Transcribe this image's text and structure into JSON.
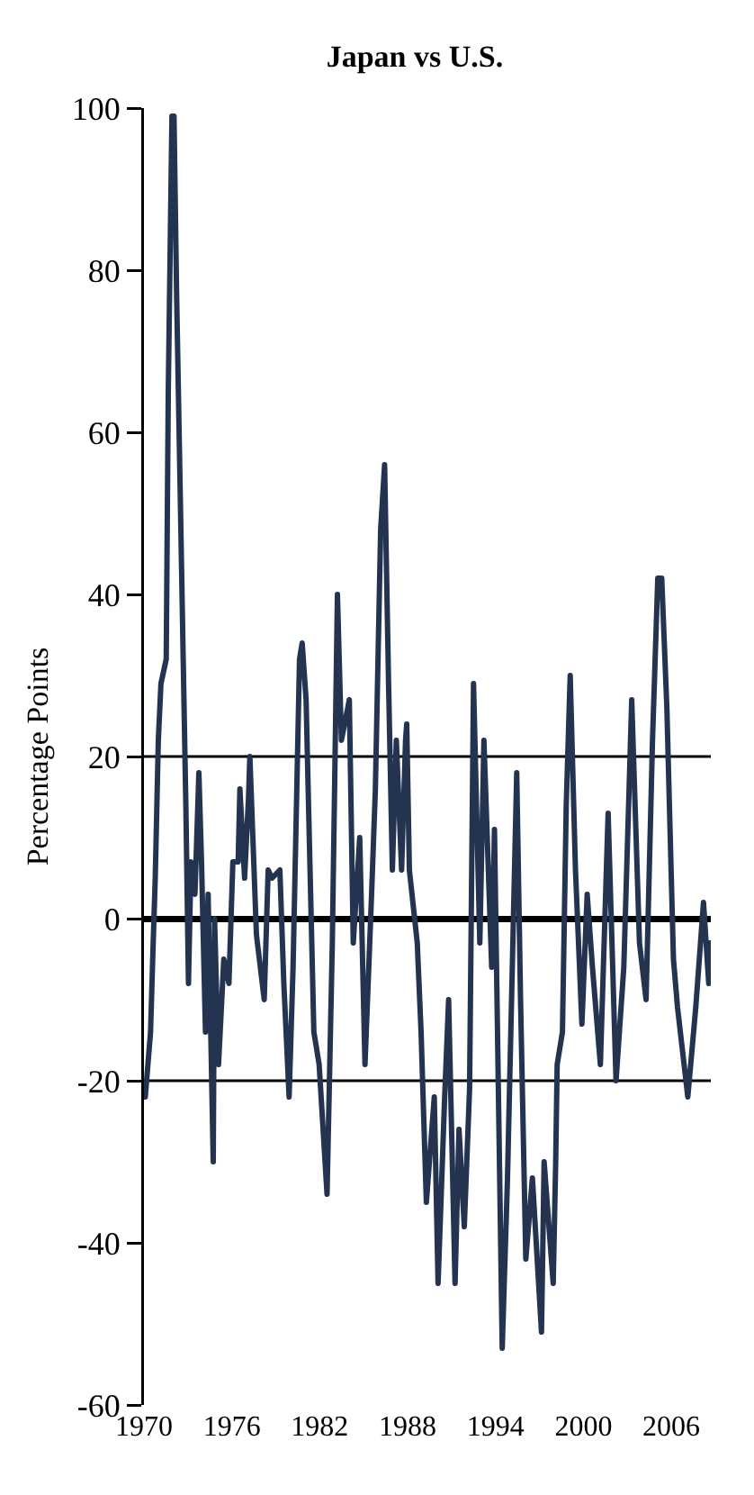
{
  "chart_data": {
    "type": "line",
    "title": "Japan vs U.S.",
    "ylabel": "Percentage Points",
    "xlim": [
      1970,
      2008.7
    ],
    "xticks": [
      1970,
      1976,
      1982,
      1988,
      1994,
      2000,
      2006
    ],
    "ylim": [
      -60,
      100
    ],
    "yticks": [
      -60,
      -40,
      -20,
      0,
      20,
      40,
      60,
      80,
      100
    ],
    "grid": false,
    "marker": "none",
    "line_style": "solid",
    "ref_lines": [
      {
        "axis": "y",
        "value": 20,
        "color": "#000000"
      },
      {
        "axis": "y",
        "value": -20,
        "color": "#000000"
      }
    ],
    "series": [
      {
        "color": "#233350",
        "x": [
          1970.09,
          1970.45,
          1970.63,
          1970.77,
          1970.98,
          1971.16,
          1971.52,
          1971.66,
          1971.91,
          1972.05,
          1972.23,
          1972.5,
          1972.68,
          1972.86,
          1973.04,
          1973.21,
          1973.48,
          1973.75,
          1973.93,
          1974.2,
          1974.38,
          1974.73,
          1974.82,
          1975.09,
          1975.45,
          1975.8,
          1976.07,
          1976.43,
          1976.55,
          1976.87,
          1977.14,
          1977.23,
          1977.68,
          1978.21,
          1978.48,
          1978.75,
          1979.28,
          1979.55,
          1979.91,
          1980.18,
          1980.62,
          1980.8,
          1981.07,
          1981.34,
          1981.6,
          1981.96,
          1982.5,
          1982.86,
          1983.21,
          1983.48,
          1984.02,
          1984.29,
          1984.73,
          1985.09,
          1985.54,
          1985.8,
          1986.16,
          1986.43,
          1986.7,
          1986.96,
          1987.23,
          1987.59,
          1987.86,
          1987.94,
          1988.12,
          1988.66,
          1988.92,
          1989.28,
          1989.82,
          1990.08,
          1990.53,
          1990.8,
          1991.24,
          1991.51,
          1991.87,
          1992.23,
          1992.5,
          1992.93,
          1993.21,
          1993.74,
          1993.93,
          1994.46,
          1994.82,
          1995.45,
          1995.71,
          1996.07,
          1996.52,
          1997.14,
          1997.32,
          1997.94,
          1998.11,
          1998.21,
          1998.57,
          1998.83,
          1999.1,
          1999.46,
          1999.9,
          2000.26,
          2000.62,
          2001.16,
          2001.69,
          2002.23,
          2002.76,
          2003.3,
          2003.83,
          2004.28,
          2004.72,
          2005.08,
          2005.35,
          2005.7,
          2006.15,
          2006.43,
          2007.13,
          2007.67,
          2008.2,
          2008.56,
          2008.65
        ],
        "values": [
          -22,
          -14,
          -3,
          5,
          22,
          29,
          32,
          65,
          99,
          99,
          77,
          50,
          32,
          14,
          -8,
          7,
          3,
          18,
          7,
          -14,
          3,
          -30,
          0,
          -18,
          -5,
          -8,
          7,
          7,
          16,
          5,
          15,
          20,
          -2,
          -10,
          6,
          5,
          6,
          -8,
          -22,
          -6,
          32,
          34,
          27,
          6,
          -14,
          -18,
          -34,
          -3,
          40,
          22,
          27,
          -3,
          10,
          -18,
          3,
          16,
          48,
          56,
          29,
          6,
          22,
          6,
          22,
          24,
          6,
          -3,
          -14,
          -35,
          -22,
          -45,
          -22,
          -10,
          -45,
          -26,
          -38,
          -21,
          29,
          -3,
          22,
          -6,
          11,
          -53,
          -32,
          18,
          -10,
          -42,
          -32,
          -51,
          -30,
          -45,
          -30,
          -18,
          -14,
          14,
          30,
          6,
          -13,
          3,
          -6,
          -18,
          13,
          -20,
          -6,
          27,
          -3,
          -10,
          22,
          42,
          42,
          26,
          -5,
          -11,
          -22,
          -11,
          2,
          -8,
          -3
        ]
      }
    ]
  }
}
